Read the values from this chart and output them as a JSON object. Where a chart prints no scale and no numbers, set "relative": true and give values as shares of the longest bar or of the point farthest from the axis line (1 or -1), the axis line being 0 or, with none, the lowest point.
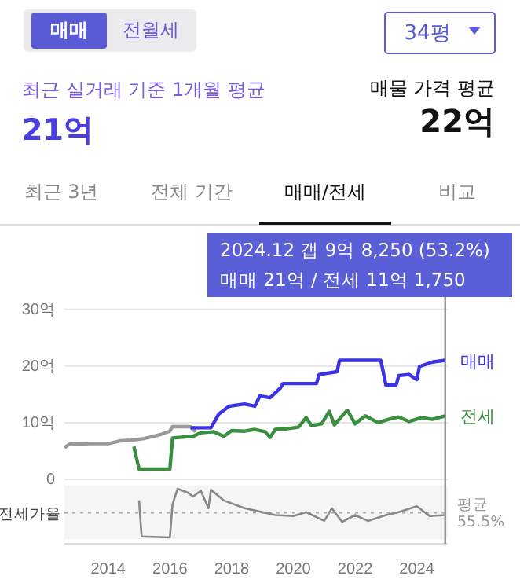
{
  "chart_data": [
    {
      "type": "line",
      "xlim": [
        "2012-08",
        "2025-01"
      ],
      "ylim": [
        0,
        33
      ],
      "yticks": [
        {
          "value": 0,
          "label": "0"
        },
        {
          "value": 10,
          "label": "10억"
        },
        {
          "value": 20,
          "label": "20억"
        },
        {
          "value": 30,
          "label": "30억"
        }
      ],
      "grid": "y",
      "tick_labels": "y",
      "series": [
        {
          "color": "#999999",
          "x": [
            "2012-08",
            "2012-10",
            "2013-06",
            "2014-01",
            "2014-06",
            "2014-10",
            "2015-03",
            "2015-06",
            "2015-10",
            "2016-01",
            "2016-02",
            "2016-09",
            "2016-10",
            "2016-11"
          ],
          "values": [
            5.6,
            6.2,
            6.3,
            6.3,
            6.8,
            6.9,
            7.2,
            7.5,
            8.0,
            8.5,
            9.3,
            9.3,
            8.8,
            8.4
          ]
        },
        {
          "name": "매매",
          "color": "#3d33e6",
          "x": [
            "2016-09",
            "2017-05",
            "2017-08",
            "2017-12",
            "2018-06",
            "2018-10",
            "2018-12",
            "2019-04",
            "2019-08",
            "2019-09",
            "2020-10",
            "2020-11",
            "2021-06",
            "2021-07",
            "2022-11",
            "2023-01",
            "2023-05",
            "2023-06",
            "2023-10",
            "2024-01",
            "2024-02",
            "2024-07",
            "2024-12"
          ],
          "values": [
            9.1,
            9.1,
            11.5,
            12.9,
            13.3,
            12.9,
            14.7,
            14.4,
            16.1,
            16.9,
            16.9,
            18.5,
            19,
            21,
            21,
            16.6,
            16.6,
            18.3,
            18.5,
            17.6,
            19.9,
            20.7,
            21
          ]
        },
        {
          "name": "전세",
          "color": "#3a8f3f",
          "x": [
            "2014-11",
            "2015-01",
            "2016-01",
            "2016-02",
            "2016-10",
            "2017-01",
            "2017-06",
            "2017-10",
            "2018-01",
            "2018-06",
            "2018-10",
            "2019-02",
            "2019-04",
            "2019-06",
            "2019-10",
            "2020-03",
            "2020-06",
            "2020-08",
            "2020-12",
            "2021-03",
            "2021-05",
            "2021-08",
            "2021-10",
            "2022-01",
            "2022-05",
            "2022-10",
            "2023-02",
            "2023-06",
            "2023-10",
            "2024-03",
            "2024-07",
            "2024-12"
          ],
          "values": [
            5.8,
            1.8,
            1.8,
            7.3,
            7.6,
            8.2,
            8.4,
            7.6,
            8.6,
            8.5,
            8.8,
            8.4,
            7.4,
            8.8,
            8.9,
            9.2,
            10.9,
            9.5,
            9.8,
            12.0,
            9.6,
            11.2,
            12.2,
            9.8,
            11.2,
            10.0,
            10.6,
            11.0,
            10.2,
            10.9,
            10.6,
            11.175
          ]
        }
      ],
      "ref_lines": [
        {
          "axis": "x",
          "value": "2024-12",
          "color": "#666666"
        }
      ],
      "annotations": [
        "매매",
        "전월세",
        "34평",
        "최근 실거래 기준 1개월 평균",
        "21억",
        "매물 가격 평균",
        "22억",
        "최근 3년",
        "전체 기간",
        "매매/전세",
        "비교",
        "2024.12  갭 9억 8,250 (53.2%)",
        "매매 21억 / 전세 11억 1,750"
      ]
    },
    {
      "type": "line",
      "ylabel": "전세가율",
      "xlim": [
        "2012-08",
        "2025-01"
      ],
      "relative": true,
      "tick_labels": "x",
      "xticks": [
        "2014",
        "2016",
        "2018",
        "2020",
        "2022",
        "2024"
      ],
      "x": [
        "2015-01",
        "2015-02",
        "2016-01",
        "2016-02",
        "2016-04",
        "2016-08",
        "2016-10",
        "2017-01",
        "2017-04",
        "2017-05",
        "2017-10",
        "2018-06",
        "2019-01",
        "2019-06",
        "2020-01",
        "2020-06",
        "2021-01",
        "2021-04",
        "2021-08",
        "2022-01",
        "2022-06",
        "2023-01",
        "2023-06",
        "2024-01",
        "2024-06",
        "2024-12"
      ],
      "series": [
        {
          "color": "#888888",
          "values": [
            0.76,
            0.02,
            0,
            0.68,
            1,
            0.92,
            0.84,
            0.96,
            0.6,
            0.98,
            0.76,
            0.6,
            0.52,
            0.46,
            0.44,
            0.52,
            0.34,
            0.6,
            0.32,
            0.46,
            0.34,
            0.46,
            0.52,
            0.64,
            0.44,
            0.46
          ]
        }
      ],
      "ref_lines": [
        {
          "axis": "y",
          "value": 0.51,
          "label": "평균 55.5%",
          "color": "#aaaaaa",
          "line_style": "dotted"
        },
        {
          "axis": "x",
          "value": "2024-12",
          "color": "#666666"
        }
      ]
    }
  ]
}
